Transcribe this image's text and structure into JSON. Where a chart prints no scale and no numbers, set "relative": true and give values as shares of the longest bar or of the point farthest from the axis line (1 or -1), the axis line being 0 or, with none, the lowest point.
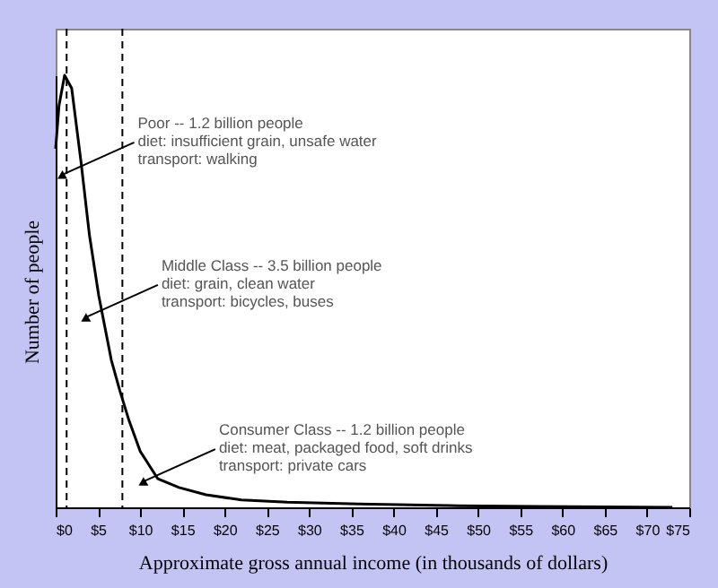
{
  "chart_data": {
    "type": "line",
    "relative": true,
    "xlabel": "Approximate gross annual income (in thousands of dollars)",
    "ylabel": "Number of people",
    "x": [
      0,
      0.4,
      1.06,
      1.9,
      3.0,
      4.0,
      5.1,
      6.6,
      7.6,
      8.7,
      10.0,
      12.1,
      14.6,
      17.8,
      22,
      27.4,
      35.9,
      46.5,
      57,
      73
    ],
    "series": [
      {
        "color": "#000000",
        "values": [
          0.83,
          0.93,
          1.0,
          0.97,
          0.8,
          0.63,
          0.49,
          0.34,
          0.27,
          0.2,
          0.13,
          0.066,
          0.046,
          0.029,
          0.017,
          0.012,
          0.008,
          0.004,
          0.002,
          0
        ]
      }
    ],
    "xlim": [
      0,
      75
    ],
    "xticks": [
      {
        "value": 0,
        "label": "$0"
      },
      {
        "value": 5,
        "label": "$5"
      },
      {
        "value": 10,
        "label": "$10"
      },
      {
        "value": 15,
        "label": "$15"
      },
      {
        "value": 20,
        "label": "$20"
      },
      {
        "value": 25,
        "label": "$25"
      },
      {
        "value": 30,
        "label": "$30"
      },
      {
        "value": 35,
        "label": "$35"
      },
      {
        "value": 40,
        "label": "$40"
      },
      {
        "value": 45,
        "label": "$45"
      },
      {
        "value": 50,
        "label": "$50"
      },
      {
        "value": 55,
        "label": "$55"
      },
      {
        "value": 60,
        "label": "$60"
      },
      {
        "value": 65,
        "label": "$65"
      },
      {
        "value": 70,
        "label": "$70"
      },
      {
        "value": 75,
        "label": "$75"
      }
    ],
    "ref_lines": [
      {
        "axis": "x",
        "value": 1.3,
        "color": "#000000",
        "line_style": "dashed"
      },
      {
        "axis": "x",
        "value": 7.9,
        "color": "#000000",
        "line_style": "dashed"
      }
    ],
    "annotations": [
      {
        "text": "Poor -- 1.2 billion people\ndiet: insufficient grain, unsafe water\ntransport: walking",
        "x": 0.8,
        "y": 0.77
      },
      {
        "text": "Middle Class -- 3.5 billion people\ndiet: grain, clean water\ntransport: bicycles, buses",
        "x": 3.6,
        "y": 0.44
      },
      {
        "text": "Consumer Class -- 1.2 billion people\ndiet: meat, packaged food, soft drinks\ntransport: private cars",
        "x": 10.4,
        "y": 0.06
      }
    ],
    "grid": false,
    "marker": "none",
    "line_style": "solid"
  }
}
